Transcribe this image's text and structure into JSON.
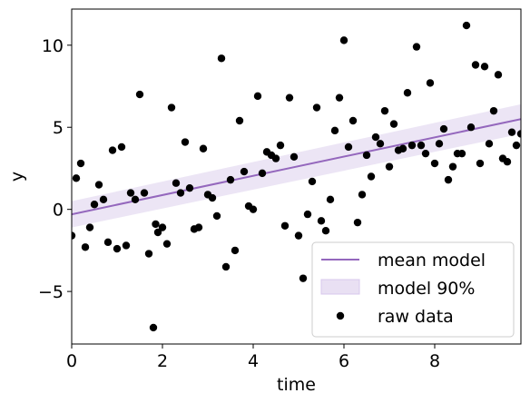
{
  "chart_data": {
    "type": "scatter",
    "xlabel": "time",
    "ylabel": "y",
    "xlim": [
      0,
      9.9
    ],
    "ylim": [
      -8.2,
      12.2
    ],
    "xticks": [
      0,
      2,
      4,
      6,
      8
    ],
    "yticks": [
      -5,
      0,
      5,
      10
    ],
    "xtick_labels": [
      "0",
      "2",
      "4",
      "6",
      "8"
    ],
    "ytick_labels": [
      "−5",
      "0",
      "5",
      "10"
    ],
    "grid": false,
    "legend_position": "bottom-right",
    "legend": {
      "mean_label": "mean model",
      "band_label": "model 90%",
      "data_label": "raw data"
    },
    "colors": {
      "mean_line": "#9467bd",
      "band_fill": "#e9e0f3",
      "points": "#000000"
    },
    "mean_model": {
      "x": [
        0,
        9.9
      ],
      "y": [
        -0.3,
        5.5
      ]
    },
    "band_90": {
      "x": [
        0,
        9.9
      ],
      "lower": [
        -1.1,
        4.6
      ],
      "upper": [
        0.5,
        6.4
      ]
    },
    "raw_data": {
      "x": [
        0.0,
        0.1,
        0.2,
        0.3,
        0.4,
        0.5,
        0.6,
        0.7,
        0.8,
        0.9,
        1.0,
        1.1,
        1.2,
        1.3,
        1.4,
        1.5,
        1.6,
        1.7,
        1.8,
        1.85,
        1.9,
        2.0,
        2.1,
        2.2,
        2.3,
        2.4,
        2.5,
        2.6,
        2.7,
        2.8,
        2.9,
        3.0,
        3.1,
        3.2,
        3.3,
        3.4,
        3.5,
        3.6,
        3.7,
        3.8,
        3.9,
        4.0,
        4.1,
        4.2,
        4.3,
        4.4,
        4.5,
        4.6,
        4.7,
        4.8,
        4.9,
        5.0,
        5.1,
        5.2,
        5.3,
        5.4,
        5.5,
        5.6,
        5.7,
        5.8,
        5.9,
        6.0,
        6.1,
        6.2,
        6.3,
        6.4,
        6.5,
        6.6,
        6.7,
        6.8,
        6.9,
        7.0,
        7.1,
        7.2,
        7.3,
        7.4,
        7.5,
        7.6,
        7.7,
        7.8,
        7.9,
        8.0,
        8.1,
        8.2,
        8.3,
        8.4,
        8.5,
        8.6,
        8.7,
        8.8,
        8.9,
        9.0,
        9.1,
        9.2,
        9.3,
        9.4,
        9.5,
        9.6,
        9.7,
        9.8,
        9.9
      ],
      "y": [
        -1.6,
        1.9,
        2.8,
        -2.3,
        -1.1,
        0.3,
        1.5,
        0.6,
        -2.0,
        3.6,
        -2.4,
        3.8,
        -2.2,
        1.0,
        0.6,
        7.0,
        1.0,
        -2.7,
        -7.2,
        -0.9,
        -1.4,
        -1.1,
        -2.1,
        6.2,
        1.6,
        1.0,
        4.1,
        1.3,
        -1.2,
        -1.1,
        3.7,
        0.9,
        0.7,
        -0.4,
        9.2,
        -3.5,
        1.8,
        -2.5,
        5.4,
        2.3,
        0.2,
        0.0,
        6.9,
        2.2,
        3.5,
        3.3,
        3.1,
        3.9,
        -1.0,
        6.8,
        3.2,
        -1.6,
        -4.2,
        -0.3,
        1.7,
        6.2,
        -0.7,
        -1.3,
        0.6,
        4.8,
        6.8,
        10.3,
        3.8,
        5.4,
        -0.8,
        0.9,
        3.3,
        2.0,
        4.4,
        4.0,
        6.0,
        2.6,
        5.2,
        3.6,
        3.7,
        7.1,
        3.9,
        9.9,
        3.9,
        3.4,
        7.7,
        2.8,
        4.0,
        4.9,
        1.8,
        2.6,
        3.4,
        3.4,
        11.2,
        5.0,
        8.8,
        2.8,
        8.7,
        4.0,
        6.0,
        8.2,
        3.1,
        2.9,
        4.7,
        3.9,
        4.6
      ]
    }
  }
}
